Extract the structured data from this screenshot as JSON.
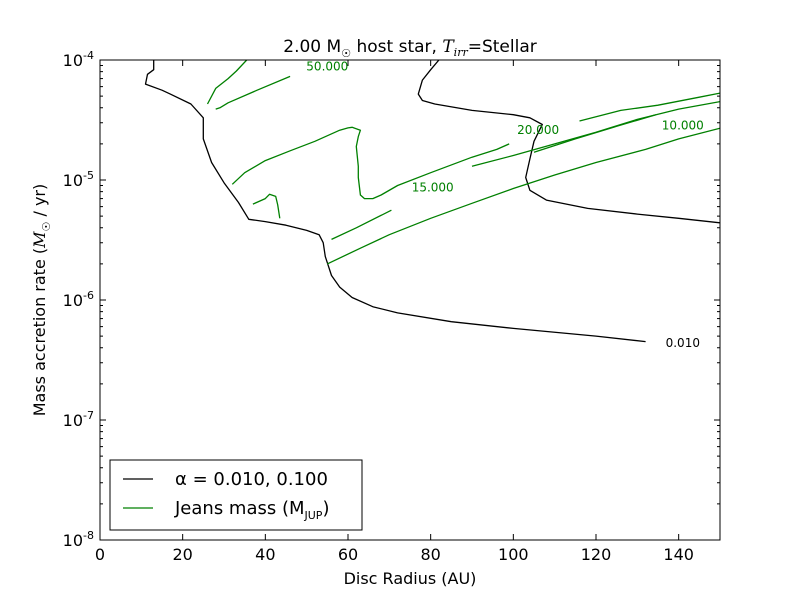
{
  "chart_data": {
    "type": "line",
    "title": "2.00 M☉ host star, T_irr=Stellar",
    "title_parts": {
      "main": "2.00 M",
      "sun_symbol": "☉",
      "middle": " host star, ",
      "t_symbol": "T",
      "t_subscript": "irr",
      "end": "=Stellar"
    },
    "xlabel": "Disc Radius (AU)",
    "ylabel": "Mass accretion rate (M☉ / yr)",
    "ylabel_parts": {
      "main": "Mass accretion rate (",
      "m_symbol": "M",
      "sun_symbol": "☉",
      "end": " / yr)"
    },
    "xlim": [
      0,
      150
    ],
    "ylim": [
      1e-08,
      0.0001
    ],
    "y_scale": "log",
    "x_ticks": [
      0,
      20,
      40,
      60,
      80,
      100,
      120,
      140
    ],
    "y_ticks": [
      {
        "value": 1e-08,
        "base": "10",
        "exp": "-8"
      },
      {
        "value": 1e-07,
        "base": "10",
        "exp": "-7"
      },
      {
        "value": 1e-06,
        "base": "10",
        "exp": "-6"
      },
      {
        "value": 1e-05,
        "base": "10",
        "exp": "-5"
      },
      {
        "value": 0.0001,
        "base": "10",
        "exp": "-4"
      }
    ],
    "grid": false,
    "legend": {
      "placement": "lower-left",
      "entries": [
        {
          "label": "α = 0.010, 0.100",
          "color": "#000000"
        },
        {
          "label": "Jeans mass (M",
          "subscript": "JUP",
          "suffix": ")",
          "color": "#008000"
        }
      ]
    },
    "series": [
      {
        "group": "alpha",
        "color": "#000000",
        "points": [
          [
            132,
            4.5e-07
          ],
          [
            120,
            5e-07
          ],
          [
            100,
            5.8e-07
          ],
          [
            85,
            6.6e-07
          ],
          [
            72,
            7.8e-07
          ],
          [
            66,
            8.8e-07
          ],
          [
            61,
            1.05e-06
          ],
          [
            58,
            1.28e-06
          ],
          [
            56,
            1.6e-06
          ],
          [
            54.5,
            2.3e-06
          ],
          [
            54,
            3e-06
          ],
          [
            53,
            3.5e-06
          ],
          [
            50,
            3.8e-06
          ],
          [
            45,
            4.2e-06
          ],
          [
            40,
            4.5e-06
          ],
          [
            36,
            4.7e-06
          ],
          [
            33.5,
            6.5e-06
          ],
          [
            30,
            9.5e-06
          ],
          [
            27,
            1.4e-05
          ],
          [
            25,
            2.2e-05
          ],
          [
            25,
            3.3e-05
          ],
          [
            22,
            4.3e-05
          ],
          [
            17,
            5.2e-05
          ],
          [
            15,
            5.6e-05
          ],
          [
            11,
            6.3e-05
          ],
          [
            11.5,
            7.6e-05
          ],
          [
            13,
            8.3e-05
          ],
          [
            13,
            0.0001
          ]
        ]
      },
      {
        "group": "alpha",
        "color": "#000000",
        "points": [
          [
            150,
            4.4e-06
          ],
          [
            140,
            4.8e-06
          ],
          [
            130,
            5.2e-06
          ],
          [
            118,
            5.8e-06
          ],
          [
            108,
            6.8e-06
          ],
          [
            104,
            8.2e-06
          ],
          [
            103,
            1.05e-05
          ],
          [
            104,
            1.5e-05
          ],
          [
            105,
            2.1e-05
          ],
          [
            107,
            2.9e-05
          ],
          [
            104,
            3.3e-05
          ],
          [
            100,
            3.5e-05
          ],
          [
            90,
            3.8e-05
          ],
          [
            81,
            4.3e-05
          ],
          [
            78,
            4.6e-05
          ],
          [
            77,
            5.2e-05
          ],
          [
            78,
            6.8e-05
          ],
          [
            80,
            8.3e-05
          ],
          [
            82,
            0.0001
          ]
        ]
      },
      {
        "group": "jeans",
        "color": "#008000",
        "points": [
          [
            26,
            4.3e-05
          ],
          [
            28,
            5.8e-05
          ],
          [
            31,
            7e-05
          ],
          [
            33,
            8.1e-05
          ],
          [
            35.5,
            0.0001
          ]
        ]
      },
      {
        "group": "jeans",
        "color": "#008000",
        "points": [
          [
            28,
            3.9e-05
          ],
          [
            29,
            4e-05
          ],
          [
            31,
            4.4e-05
          ],
          [
            38,
            5.6e-05
          ],
          [
            46,
            7.3e-05
          ]
        ]
      },
      {
        "group": "jeans",
        "color": "#008000",
        "points": [
          [
            32,
            9.2e-06
          ],
          [
            35,
            1.15e-05
          ],
          [
            40,
            1.45e-05
          ],
          [
            46,
            1.75e-05
          ],
          [
            52,
            2.1e-05
          ],
          [
            58,
            2.6e-05
          ],
          [
            60,
            2.72e-05
          ],
          [
            61,
            2.75e-05
          ],
          [
            63,
            2.6e-05
          ],
          [
            62.5,
            2.3e-05
          ],
          [
            62,
            1.9e-05
          ],
          [
            62.5,
            1.3e-05
          ],
          [
            62.5,
            1.05e-05
          ],
          [
            63,
            7.5e-06
          ],
          [
            64,
            7e-06
          ],
          [
            66,
            7e-06
          ],
          [
            68,
            7.5e-06
          ],
          [
            72,
            9e-06
          ],
          [
            80,
            1.15e-05
          ],
          [
            90,
            1.55e-05
          ],
          [
            96,
            1.8e-05
          ],
          [
            99,
            2e-05
          ]
        ]
      },
      {
        "group": "jeans",
        "color": "#008000",
        "points": [
          [
            37,
            6.3e-06
          ],
          [
            40,
            7e-06
          ],
          [
            41,
            7.6e-06
          ],
          [
            42.5,
            7.3e-06
          ],
          [
            43,
            6.2e-06
          ],
          [
            43.5,
            4.8e-06
          ]
        ]
      },
      {
        "group": "jeans",
        "color": "#008000",
        "points": [
          [
            56,
            3.2e-06
          ],
          [
            62,
            4e-06
          ],
          [
            70.5,
            5.6e-06
          ]
        ]
      },
      {
        "group": "jeans",
        "color": "#008000",
        "points": [
          [
            90,
            1.3e-05
          ],
          [
            100,
            1.6e-05
          ],
          [
            110,
            2e-05
          ],
          [
            120,
            2.5e-05
          ],
          [
            130,
            3.2e-05
          ],
          [
            140,
            3.9e-05
          ],
          [
            150,
            4.5e-05
          ]
        ]
      },
      {
        "group": "jeans",
        "color": "#008000",
        "points": [
          [
            55,
            2e-06
          ],
          [
            63,
            2.7e-06
          ],
          [
            70,
            3.5e-06
          ],
          [
            80,
            4.8e-06
          ],
          [
            90,
            6.4e-06
          ],
          [
            100,
            8.5e-06
          ],
          [
            110,
            1.1e-05
          ],
          [
            120,
            1.4e-05
          ],
          [
            132,
            1.8e-05
          ],
          [
            140,
            2.2e-05
          ],
          [
            150,
            2.7e-05
          ]
        ]
      },
      {
        "group": "jeans",
        "color": "#008000",
        "points": [
          [
            105,
            1.7e-05
          ],
          [
            115,
            2.2e-05
          ],
          [
            125,
            2.8e-05
          ],
          [
            134.5,
            3.5e-05
          ]
        ]
      },
      {
        "group": "jeans",
        "color": "#008000",
        "points": [
          [
            116,
            3.1e-05
          ],
          [
            126,
            3.8e-05
          ],
          [
            135,
            4.2e-05
          ],
          [
            145,
            4.9e-05
          ],
          [
            150,
            5.3e-05
          ]
        ]
      }
    ],
    "contour_labels": [
      {
        "text": "0.010",
        "x": 141,
        "y": 4.4e-07,
        "color": "#000000"
      },
      {
        "text": "50.000",
        "x": 55,
        "y": 8.8e-05,
        "color": "#008000"
      },
      {
        "text": "20.000",
        "x": 106,
        "y": 2.6e-05,
        "color": "#008000"
      },
      {
        "text": "10.000",
        "x": 141,
        "y": 2.85e-05,
        "color": "#008000"
      },
      {
        "text": "15.000",
        "x": 80.5,
        "y": 8.7e-06,
        "color": "#008000"
      }
    ]
  }
}
